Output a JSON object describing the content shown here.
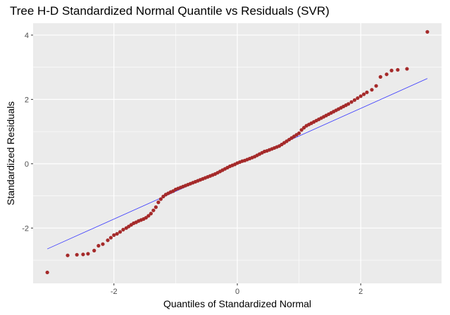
{
  "chart_data": {
    "type": "scatter",
    "title": "Tree H-D Standardized Normal Quantile vs Residuals (SVR)",
    "xlabel": "Quantiles of Standardized Normal",
    "ylabel": "Standardized Residuals",
    "xlim": [
      -3.31,
      3.31
    ],
    "ylim": [
      -3.72,
      4.37
    ],
    "x_ticks": [
      -2,
      0,
      2
    ],
    "y_ticks": [
      -2,
      0,
      2,
      4
    ],
    "grid": true,
    "legend": "none",
    "reference_line": {
      "x": [
        -3.08,
        3.08
      ],
      "y": [
        -2.65,
        2.65
      ],
      "color": "#3333ff"
    },
    "point_color": "#a52a2a",
    "panel_background": "#ebebeb",
    "points": {
      "x": [
        -3.08,
        -2.75,
        -2.6,
        -2.5,
        -2.42,
        -2.32,
        -2.25,
        -2.18,
        -2.1,
        -2.05,
        -2.0,
        -1.95,
        -1.9,
        -1.85,
        -1.8,
        -1.76,
        -1.72,
        -1.68,
        -1.64,
        -1.6,
        -1.56,
        -1.52,
        -1.48,
        -1.44,
        -1.4,
        -1.36,
        -1.32,
        -1.28,
        -1.24,
        -1.2,
        -1.16,
        -1.12,
        -1.08,
        -1.04,
        -1.0,
        -0.96,
        -0.92,
        -0.88,
        -0.84,
        -0.8,
        -0.76,
        -0.72,
        -0.68,
        -0.64,
        -0.6,
        -0.56,
        -0.52,
        -0.48,
        -0.44,
        -0.4,
        -0.36,
        -0.32,
        -0.28,
        -0.24,
        -0.2,
        -0.16,
        -0.12,
        -0.08,
        -0.04,
        0.0,
        0.04,
        0.08,
        0.12,
        0.16,
        0.2,
        0.24,
        0.28,
        0.32,
        0.36,
        0.4,
        0.44,
        0.48,
        0.52,
        0.56,
        0.6,
        0.64,
        0.68,
        0.72,
        0.76,
        0.8,
        0.84,
        0.88,
        0.92,
        0.96,
        1.0,
        1.04,
        1.08,
        1.12,
        1.16,
        1.2,
        1.24,
        1.28,
        1.32,
        1.36,
        1.4,
        1.44,
        1.48,
        1.52,
        1.56,
        1.6,
        1.64,
        1.68,
        1.72,
        1.76,
        1.8,
        1.85,
        1.9,
        1.95,
        2.0,
        2.05,
        2.1,
        2.18,
        2.25,
        2.32,
        2.42,
        2.5,
        2.6,
        2.75,
        3.08
      ],
      "y": [
        -3.38,
        -2.85,
        -2.83,
        -2.82,
        -2.8,
        -2.7,
        -2.55,
        -2.5,
        -2.38,
        -2.3,
        -2.22,
        -2.18,
        -2.12,
        -2.05,
        -2.0,
        -1.95,
        -1.9,
        -1.85,
        -1.82,
        -1.78,
        -1.75,
        -1.72,
        -1.68,
        -1.62,
        -1.55,
        -1.45,
        -1.35,
        -1.2,
        -1.1,
        -1.02,
        -0.96,
        -0.92,
        -0.88,
        -0.85,
        -0.8,
        -0.77,
        -0.74,
        -0.71,
        -0.68,
        -0.65,
        -0.62,
        -0.59,
        -0.56,
        -0.53,
        -0.5,
        -0.47,
        -0.44,
        -0.41,
        -0.38,
        -0.35,
        -0.32,
        -0.28,
        -0.24,
        -0.2,
        -0.16,
        -0.12,
        -0.08,
        -0.05,
        -0.02,
        0.02,
        0.05,
        0.08,
        0.1,
        0.13,
        0.16,
        0.19,
        0.22,
        0.26,
        0.3,
        0.34,
        0.38,
        0.4,
        0.43,
        0.46,
        0.49,
        0.52,
        0.55,
        0.6,
        0.65,
        0.7,
        0.75,
        0.8,
        0.85,
        0.9,
        0.95,
        1.05,
        1.12,
        1.18,
        1.22,
        1.26,
        1.3,
        1.34,
        1.38,
        1.42,
        1.46,
        1.5,
        1.54,
        1.58,
        1.62,
        1.66,
        1.7,
        1.74,
        1.78,
        1.82,
        1.86,
        1.92,
        1.98,
        2.04,
        2.1,
        2.16,
        2.22,
        2.3,
        2.42,
        2.7,
        2.78,
        2.9,
        2.92,
        2.95,
        4.1
      ]
    }
  }
}
